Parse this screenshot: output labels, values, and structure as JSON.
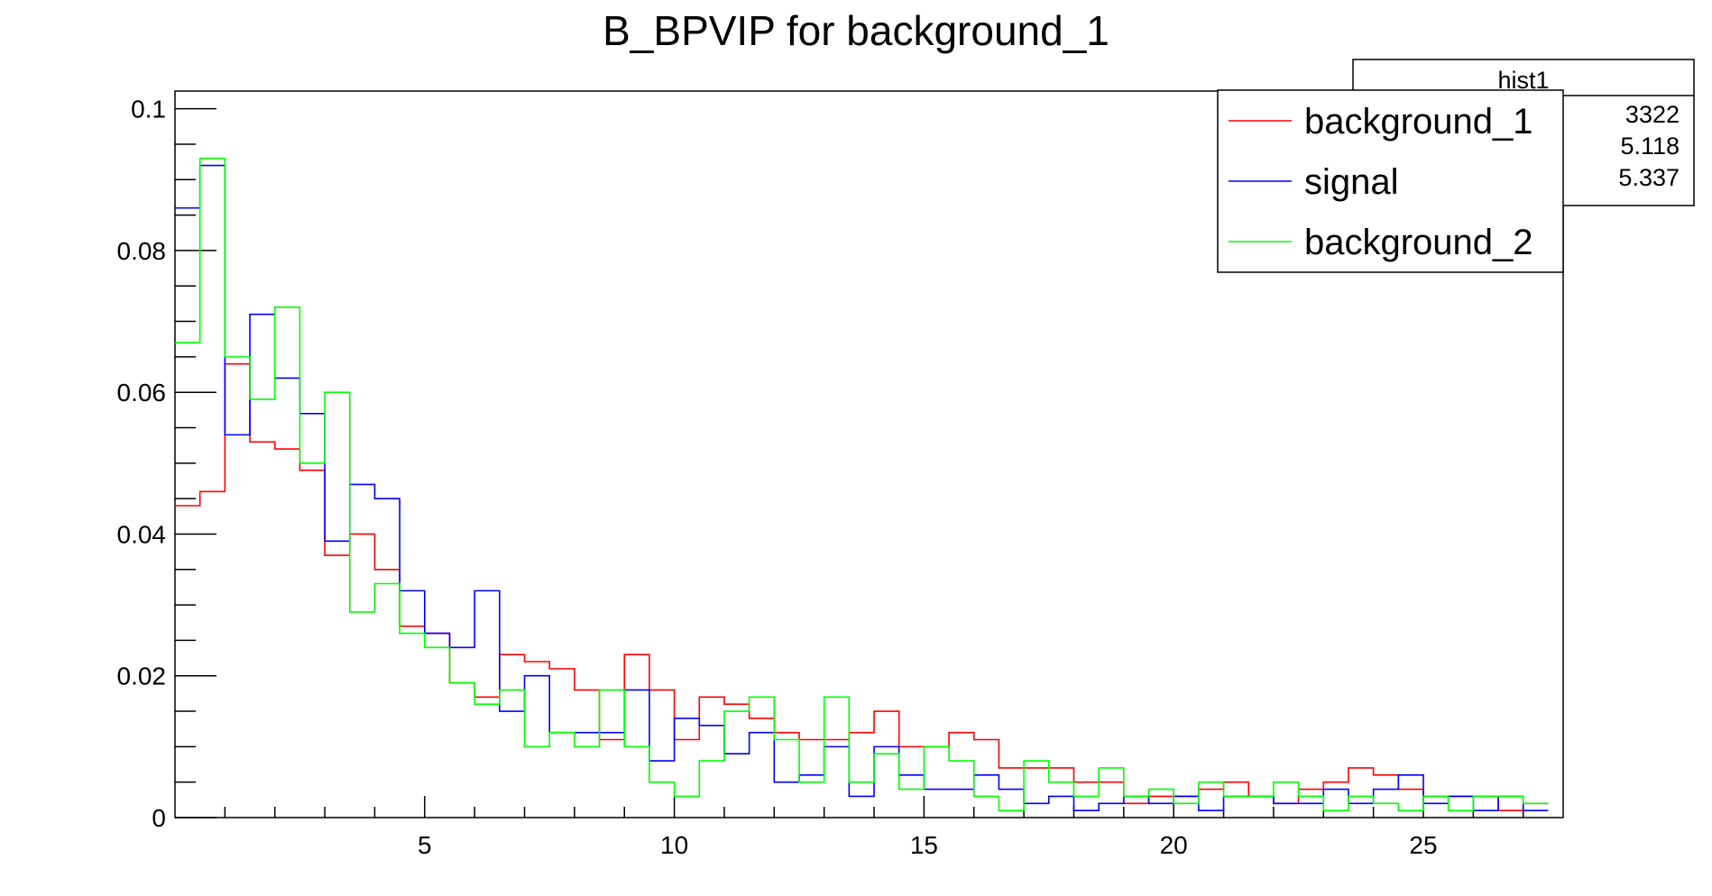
{
  "chart_data": {
    "type": "histogram",
    "title": "B_BPVIP for background_1",
    "xlabel": "",
    "ylabel": "",
    "xlim": [
      0,
      27.8
    ],
    "ylim": [
      0,
      0.1025
    ],
    "bin_width": 0.5,
    "x_ticks": [
      {
        "value": 5,
        "label": "5"
      },
      {
        "value": 10,
        "label": "10"
      },
      {
        "value": 15,
        "label": "15"
      },
      {
        "value": 20,
        "label": "20"
      },
      {
        "value": 25,
        "label": "25"
      }
    ],
    "y_ticks": [
      {
        "value": 0,
        "label": "0"
      },
      {
        "value": 0.02,
        "label": "0.02"
      },
      {
        "value": 0.04,
        "label": "0.04"
      },
      {
        "value": 0.06,
        "label": "0.06"
      },
      {
        "value": 0.08,
        "label": "0.08"
      },
      {
        "value": 0.1,
        "label": "0.1"
      }
    ],
    "grid": false,
    "legend_position": "top-right",
    "series": [
      {
        "name": "background_1",
        "color": "#ff0000",
        "values": [
          0.044,
          0.046,
          0.064,
          0.053,
          0.052,
          0.049,
          0.037,
          0.04,
          0.035,
          0.027,
          0.026,
          0.019,
          0.017,
          0.023,
          0.022,
          0.021,
          0.018,
          0.011,
          0.023,
          0.018,
          0.011,
          0.017,
          0.016,
          0.014,
          0.012,
          0.011,
          0.011,
          0.012,
          0.015,
          0.01,
          0.01,
          0.012,
          0.011,
          0.007,
          0.007,
          0.007,
          0.005,
          0.005,
          0.002,
          0.003,
          0.003,
          0.004,
          0.005,
          0.003,
          0.002,
          0.004,
          0.005,
          0.007,
          0.006,
          0.004,
          0.003,
          0.003,
          0.003,
          0.001,
          0.002,
          0.001,
          0.006,
          0.001,
          0.002,
          0.001,
          0.001,
          0.001,
          0.002,
          0.001,
          0.003,
          0.001,
          0.001,
          0.001,
          0.002,
          0.001,
          0.002,
          0.001,
          0.002,
          0.001,
          0.001,
          0.001,
          0.001,
          0.001,
          0.001,
          0.002,
          0.002,
          0.002,
          0.001,
          0.001,
          0.002,
          0.002,
          0.001,
          0.001,
          0.002,
          0.001,
          0.001,
          0.002,
          0.001,
          0.002,
          0.001,
          0.001,
          0.001,
          0.002,
          0.001,
          0.001,
          0.001,
          0.001,
          0.001,
          0.002,
          0.001,
          0.001,
          0.001,
          0.001,
          0.001,
          0.001,
          0.001,
          0.001,
          0.001,
          0.001,
          0.001,
          0.001,
          0.001,
          0.001,
          0.001,
          0.001,
          0.001,
          0.001,
          0.001,
          0.001,
          0.001,
          0.001,
          0.001,
          0.001,
          0.001,
          0.001,
          0.001,
          0.002,
          0.001,
          0.002,
          0.001,
          0.001,
          0.002,
          0.001,
          0.001,
          0.001,
          0.002,
          0.001,
          0.001,
          0.001,
          0.001,
          0.001,
          0.001,
          0.001,
          0.001,
          0.001,
          0.001,
          0.001,
          0.001,
          0.001
        ]
      },
      {
        "name": "signal",
        "color": "#0000ff",
        "values": [
          0.086,
          0.092,
          0.054,
          0.071,
          0.062,
          0.057,
          0.039,
          0.047,
          0.045,
          0.032,
          0.026,
          0.024,
          0.032,
          0.015,
          0.02,
          0.012,
          0.012,
          0.012,
          0.018,
          0.008,
          0.014,
          0.013,
          0.009,
          0.012,
          0.005,
          0.006,
          0.01,
          0.003,
          0.01,
          0.006,
          0.004,
          0.004,
          0.006,
          0.004,
          0.002,
          0.003,
          0.001,
          0.002,
          0.003,
          0.002,
          0.003,
          0.001,
          0.003,
          0.003,
          0.002,
          0.002,
          0.004,
          0.002,
          0.004,
          0.006,
          0.002,
          0.003,
          0.001,
          0.003,
          0.001,
          0.003,
          0.004,
          0.003,
          0.004,
          0.003,
          0.001,
          0.002,
          0.003,
          0.002,
          0.001,
          0.001,
          0.001,
          0.002,
          0.004,
          0.002,
          0.001,
          0.001,
          0.001,
          0.001,
          0.001,
          0.001,
          0.001,
          0.001,
          0.001,
          0.001,
          0.001,
          0.001,
          0.001,
          0.002,
          0.001,
          0.001,
          0.001,
          0.001,
          0.001,
          0.001,
          0.001,
          0.001,
          0.001,
          0.001,
          0.001,
          0.001,
          0.001,
          0.001,
          0.001,
          0.001,
          0.001,
          0.001,
          0.001,
          0.001,
          0.001,
          0.001,
          0.001,
          0.001,
          0.001,
          0.001,
          0.001,
          0.001,
          0.001,
          0.001,
          0.001,
          0.001,
          0.001,
          0.001,
          0.001,
          0.001,
          0.001,
          0.001,
          0.001,
          0.001,
          0.001,
          0.001,
          0.001,
          0.001,
          0.001,
          0.001,
          0.001,
          0.001,
          0.001,
          0.001,
          0.001,
          0.001,
          0.001,
          0.001,
          0.001,
          0.001,
          0.001,
          0.001,
          0.001,
          0.001,
          0.001,
          0.001,
          0.001,
          0.001,
          0.001,
          0.001,
          0.001,
          0.001
        ]
      },
      {
        "name": "background_2",
        "color": "#00ff00",
        "values": [
          0.067,
          0.093,
          0.065,
          0.059,
          0.072,
          0.05,
          0.06,
          0.029,
          0.033,
          0.026,
          0.024,
          0.019,
          0.016,
          0.018,
          0.01,
          0.012,
          0.01,
          0.018,
          0.01,
          0.005,
          0.003,
          0.008,
          0.015,
          0.017,
          0.011,
          0.005,
          0.017,
          0.005,
          0.009,
          0.004,
          0.01,
          0.008,
          0.003,
          0.001,
          0.008,
          0.005,
          0.003,
          0.007,
          0.003,
          0.004,
          0.002,
          0.005,
          0.003,
          0.003,
          0.005,
          0.003,
          0.001,
          0.003,
          0.002,
          0.001,
          0.003,
          0.001,
          0.003,
          0.003,
          0.002,
          0.003,
          0.001,
          0.003,
          0.001,
          0.003,
          0.001,
          0.002,
          0.001,
          0.001,
          0.001,
          0.001,
          0.001,
          0.001,
          0.002,
          0.001,
          0.001,
          0.001,
          0.001,
          0.001,
          0.001,
          0.001,
          0.001,
          0.001,
          0.001,
          0.001,
          0.001,
          0.001,
          0.001,
          0.001,
          0.001,
          0.001,
          0.001,
          0.001,
          0.001,
          0.001,
          0.001,
          0.001,
          0.001,
          0.001,
          0.001,
          0.001,
          0.001,
          0.001,
          0.001,
          0.001,
          0.001,
          0.001,
          0.001,
          0.001,
          0.001,
          0.001,
          0.001,
          0.001,
          0.001,
          0.001,
          0.001,
          0.001,
          0.001,
          0.001,
          0.001,
          0.001,
          0.001,
          0.001,
          0.001,
          0.001,
          0.001,
          0.001,
          0.001,
          0.001,
          0.001,
          0.001,
          0.001,
          0.001,
          0.001,
          0.001,
          0.001,
          0.001,
          0.001,
          0.001,
          0.001,
          0.001,
          0.001,
          0.001,
          0.001,
          0.001,
          0.001,
          0.001,
          0.001,
          0.001,
          0.001,
          0.001,
          0.001,
          0.001,
          0.001,
          0.001,
          0.001,
          0.001,
          0.001,
          0.001
        ]
      }
    ],
    "stats_box": {
      "name": "hist1",
      "rows": [
        {
          "label": "",
          "value": "3322"
        },
        {
          "label": "",
          "value": "5.118"
        },
        {
          "label": "",
          "value": "5.337"
        }
      ]
    }
  }
}
